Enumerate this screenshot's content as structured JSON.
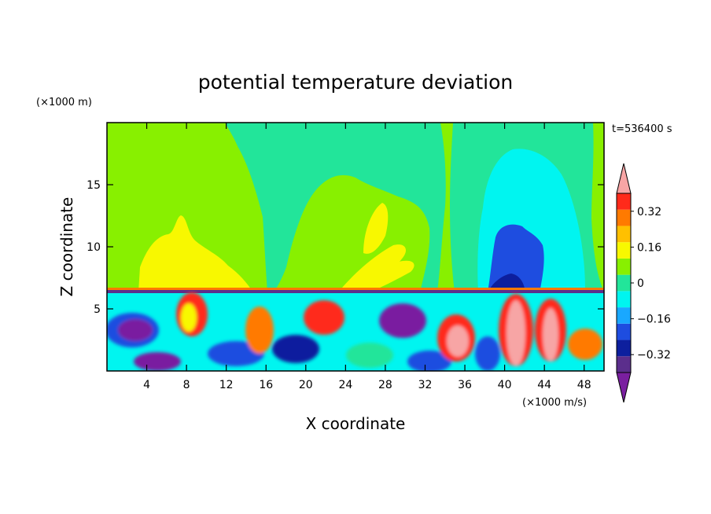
{
  "chart_data": {
    "type": "heatmap",
    "title": "potential temperature deviation",
    "xlabel": "X coordinate",
    "ylabel": "Z coordinate",
    "x_unit": "(×1000 m/s)",
    "y_unit": "(×1000 m)",
    "time_label": "t=536400 s",
    "xlim": [
      0,
      50
    ],
    "ylim": [
      0,
      20
    ],
    "x_ticks": [
      4,
      8,
      12,
      16,
      20,
      24,
      28,
      32,
      36,
      40,
      44,
      48
    ],
    "x_tick_labels": [
      "4",
      "8",
      "12",
      "16",
      "20",
      "24",
      "28",
      "32",
      "36",
      "40",
      "44",
      "48"
    ],
    "y_ticks": [
      5,
      10,
      15
    ],
    "y_tick_labels": [
      "5",
      "10",
      "15"
    ],
    "colorbar": {
      "levels": [
        -0.48,
        -0.4,
        -0.32,
        -0.24,
        -0.16,
        -0.08,
        0,
        0.08,
        0.16,
        0.24,
        0.32,
        0.4,
        0.48
      ],
      "colors": [
        "#7a1fa0",
        "#5b2e8c",
        "#0d1f9e",
        "#1e4de0",
        "#19a8ff",
        "#00f5f0",
        "#22e59a",
        "#88f000",
        "#f8f800",
        "#ffc000",
        "#ff7a00",
        "#ff2a1a",
        "#f7a5a5"
      ],
      "labels": [
        "0.32",
        "0.16",
        "0",
        "−0.16",
        "−0.32"
      ],
      "label_values": [
        0.32,
        0.16,
        0,
        -0.16,
        -0.32
      ]
    },
    "colors": {
      "background": "#88f000",
      "positive_weak": "#f8f800",
      "negative_weak": "#22e59a",
      "negative_mid": "#00f5f0",
      "negative_strong": "#1e4de0",
      "negative_max": "#0d1f9e",
      "positive_max": "#f7a5a5"
    }
  }
}
